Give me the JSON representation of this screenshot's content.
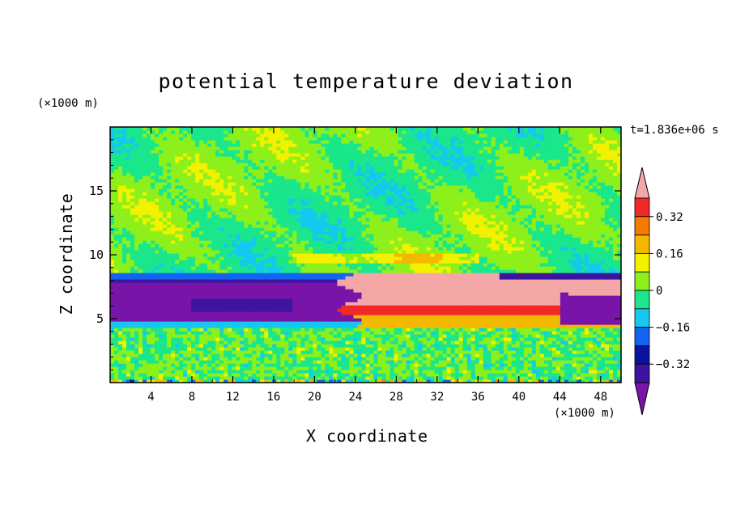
{
  "chart_data": {
    "type": "heatmap",
    "title": "potential temperature deviation",
    "xlabel": "X coordinate",
    "ylabel": "Z coordinate",
    "x_unit": "(×1000 m)",
    "y_unit": "(×1000 m)",
    "time_label": "t=1.836e+06 s",
    "xlim": [
      0,
      50
    ],
    "ylim": [
      0,
      20
    ],
    "x_ticks": [
      4,
      8,
      12,
      16,
      20,
      24,
      28,
      32,
      36,
      40,
      44,
      48
    ],
    "y_ticks": [
      5,
      10,
      15
    ],
    "colorbar": {
      "tick_labels": [
        "0.32",
        "0.16",
        "0",
        "-0.16",
        "-0.32"
      ],
      "tick_values": [
        0.32,
        0.16,
        0,
        -0.16,
        -0.32
      ],
      "levels": [
        {
          "min": 0.4,
          "max": null,
          "color": "#f4a7a7"
        },
        {
          "min": 0.32,
          "max": 0.4,
          "color": "#f02828"
        },
        {
          "min": 0.24,
          "max": 0.32,
          "color": "#f57a00"
        },
        {
          "min": 0.16,
          "max": 0.24,
          "color": "#f5b800"
        },
        {
          "min": 0.08,
          "max": 0.16,
          "color": "#f2f200"
        },
        {
          "min": 0.0,
          "max": 0.08,
          "color": "#8ef01a"
        },
        {
          "min": -0.08,
          "max": 0.0,
          "color": "#1ae68c"
        },
        {
          "min": -0.16,
          "max": -0.08,
          "color": "#14c8f0"
        },
        {
          "min": -0.24,
          "max": -0.16,
          "color": "#1464f0"
        },
        {
          "min": -0.32,
          "max": -0.24,
          "color": "#0a14a0"
        },
        {
          "min": -0.4,
          "max": -0.32,
          "color": "#3c14a0"
        },
        {
          "min": null,
          "max": -0.4,
          "color": "#7814a8"
        }
      ]
    },
    "regions": [
      {
        "desc": "upper layer mostly near zero",
        "z": [
          10,
          20
        ],
        "value_range": [
          -0.08,
          0.08
        ]
      },
      {
        "desc": "warm anomaly core",
        "x": [
          24,
          50
        ],
        "z": [
          5.5,
          8.5
        ],
        "value_min": 0.4
      },
      {
        "desc": "cold anomaly west",
        "x": [
          0,
          24
        ],
        "z": [
          4.5,
          8.5
        ],
        "value_max": -0.4
      },
      {
        "desc": "cold anomaly east",
        "x": [
          44,
          50
        ],
        "z": [
          4.5,
          7
        ],
        "value_max": -0.4
      },
      {
        "desc": "boundary layer noise",
        "z": [
          0,
          4.5
        ],
        "value_range": [
          -0.08,
          0.08
        ]
      }
    ]
  }
}
